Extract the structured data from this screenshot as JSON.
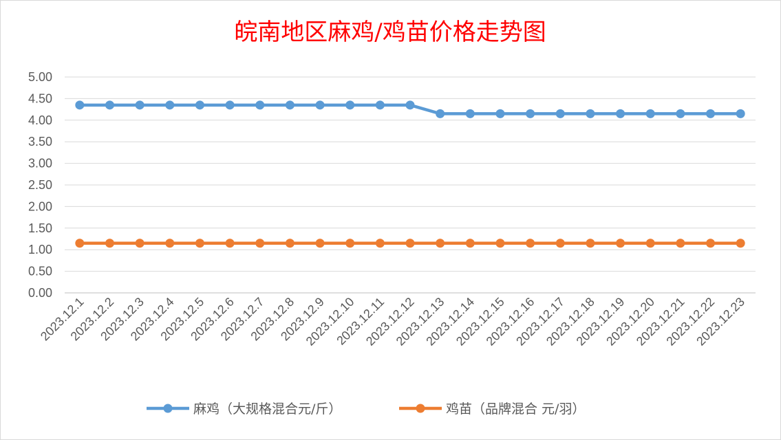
{
  "chart_data": {
    "type": "line",
    "title": "皖南地区麻鸡/鸡苗价格走势图",
    "title_color": "#ff0000",
    "categories": [
      "2023.12.1",
      "2023.12.2",
      "2023.12.3",
      "2023.12.4",
      "2023.12.5",
      "2023.12.6",
      "2023.12.7",
      "2023.12.8",
      "2023.12.9",
      "2023.12.10",
      "2023.12.11",
      "2023.12.12",
      "2023.12.13",
      "2023.12.14",
      "2023.12.15",
      "2023.12.16",
      "2023.12.17",
      "2023.12.18",
      "2023.12.19",
      "2023.12.20",
      "2023.12.21",
      "2023.12.22",
      "2023.12.23"
    ],
    "series": [
      {
        "name": "麻鸡（大规格混合元/斤）",
        "color": "#5b9bd5",
        "values": [
          4.35,
          4.35,
          4.35,
          4.35,
          4.35,
          4.35,
          4.35,
          4.35,
          4.35,
          4.35,
          4.35,
          4.35,
          4.15,
          4.15,
          4.15,
          4.15,
          4.15,
          4.15,
          4.15,
          4.15,
          4.15,
          4.15,
          4.15
        ]
      },
      {
        "name": "鸡苗（品牌混合 元/羽）",
        "color": "#ed7d31",
        "values": [
          1.15,
          1.15,
          1.15,
          1.15,
          1.15,
          1.15,
          1.15,
          1.15,
          1.15,
          1.15,
          1.15,
          1.15,
          1.15,
          1.15,
          1.15,
          1.15,
          1.15,
          1.15,
          1.15,
          1.15,
          1.15,
          1.15,
          1.15
        ]
      }
    ],
    "ylim": [
      0,
      5
    ],
    "yticks": [
      "0.00",
      "0.50",
      "1.00",
      "1.50",
      "2.00",
      "2.50",
      "3.00",
      "3.50",
      "4.00",
      "4.50",
      "5.00"
    ],
    "grid": true,
    "legend_position": "bottom"
  }
}
